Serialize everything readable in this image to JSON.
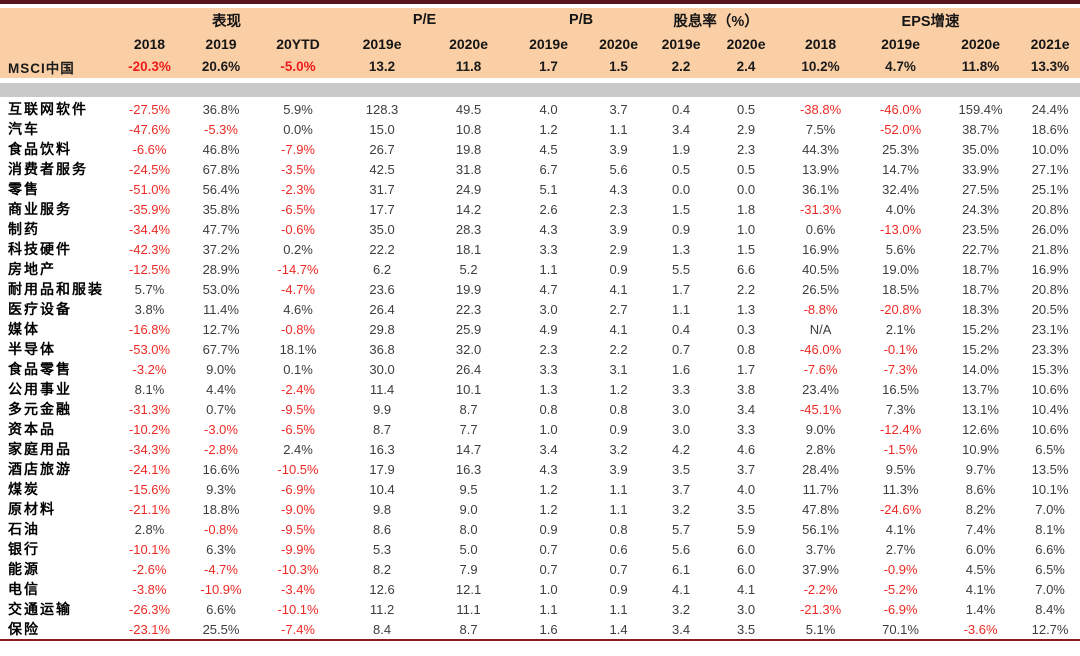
{
  "colors": {
    "top_rule": "#5a141f",
    "bottom_rule": "#8c1a23",
    "header_background": "#facfa5",
    "separator_band": "#c9c9c9",
    "negative_text": "#ee2a24",
    "normal_text": "#3d3d3d",
    "label_text": "#000000"
  },
  "chart_data": {
    "type": "table",
    "title": "",
    "column_groups": [
      {
        "label": "表现",
        "span": 3
      },
      {
        "label": "P/E",
        "span": 2
      },
      {
        "label": "P/B",
        "span": 2
      },
      {
        "label": "股息率（%）",
        "span": 2
      },
      {
        "label": "EPS增速",
        "span": 4
      }
    ],
    "columns": [
      "2018",
      "2019",
      "20YTD",
      "2019e",
      "2020e",
      "2019e",
      "2020e",
      "2019e",
      "2020e",
      "2018",
      "2019e",
      "2020e",
      "2021e"
    ],
    "summary_row": {
      "label": "MSCI中国",
      "values": [
        "-20.3%",
        "20.6%",
        "-5.0%",
        "13.2",
        "11.8",
        "1.7",
        "1.5",
        "2.2",
        "2.4",
        "10.2%",
        "4.7%",
        "11.8%",
        "13.3%"
      ]
    },
    "rows": [
      {
        "label": "互联网软件",
        "values": [
          "-27.5%",
          "36.8%",
          "5.9%",
          "128.3",
          "49.5",
          "4.0",
          "3.7",
          "0.4",
          "0.5",
          "-38.8%",
          "-46.0%",
          "159.4%",
          "24.4%"
        ]
      },
      {
        "label": "汽车",
        "values": [
          "-47.6%",
          "-5.3%",
          "0.0%",
          "15.0",
          "10.8",
          "1.2",
          "1.1",
          "3.4",
          "2.9",
          "7.5%",
          "-52.0%",
          "38.7%",
          "18.6%"
        ]
      },
      {
        "label": "食品饮料",
        "values": [
          "-6.6%",
          "46.8%",
          "-7.9%",
          "26.7",
          "19.8",
          "4.5",
          "3.9",
          "1.9",
          "2.3",
          "44.3%",
          "25.3%",
          "35.0%",
          "10.0%"
        ]
      },
      {
        "label": "消费者服务",
        "values": [
          "-24.5%",
          "67.8%",
          "-3.5%",
          "42.5",
          "31.8",
          "6.7",
          "5.6",
          "0.5",
          "0.5",
          "13.9%",
          "14.7%",
          "33.9%",
          "27.1%"
        ]
      },
      {
        "label": "零售",
        "values": [
          "-51.0%",
          "56.4%",
          "-2.3%",
          "31.7",
          "24.9",
          "5.1",
          "4.3",
          "0.0",
          "0.0",
          "36.1%",
          "32.4%",
          "27.5%",
          "25.1%"
        ]
      },
      {
        "label": "商业服务",
        "values": [
          "-35.9%",
          "35.8%",
          "-6.5%",
          "17.7",
          "14.2",
          "2.6",
          "2.3",
          "1.5",
          "1.8",
          "-31.3%",
          "4.0%",
          "24.3%",
          "20.8%"
        ]
      },
      {
        "label": "制药",
        "values": [
          "-34.4%",
          "47.7%",
          "-0.6%",
          "35.0",
          "28.3",
          "4.3",
          "3.9",
          "0.9",
          "1.0",
          "0.6%",
          "-13.0%",
          "23.5%",
          "26.0%"
        ]
      },
      {
        "label": "科技硬件",
        "values": [
          "-42.3%",
          "37.2%",
          "0.2%",
          "22.2",
          "18.1",
          "3.3",
          "2.9",
          "1.3",
          "1.5",
          "16.9%",
          "5.6%",
          "22.7%",
          "21.8%"
        ]
      },
      {
        "label": "房地产",
        "values": [
          "-12.5%",
          "28.9%",
          "-14.7%",
          "6.2",
          "5.2",
          "1.1",
          "0.9",
          "5.5",
          "6.6",
          "40.5%",
          "19.0%",
          "18.7%",
          "16.9%"
        ]
      },
      {
        "label": "耐用品和服装",
        "values": [
          "5.7%",
          "53.0%",
          "-4.7%",
          "23.6",
          "19.9",
          "4.7",
          "4.1",
          "1.7",
          "2.2",
          "26.5%",
          "18.5%",
          "18.7%",
          "20.8%"
        ]
      },
      {
        "label": "医疗设备",
        "values": [
          "3.8%",
          "11.4%",
          "4.6%",
          "26.4",
          "22.3",
          "3.0",
          "2.7",
          "1.1",
          "1.3",
          "-8.8%",
          "-20.8%",
          "18.3%",
          "20.5%"
        ]
      },
      {
        "label": "媒体",
        "values": [
          "-16.8%",
          "12.7%",
          "-0.8%",
          "29.8",
          "25.9",
          "4.9",
          "4.1",
          "0.4",
          "0.3",
          "N/A",
          "2.1%",
          "15.2%",
          "23.1%"
        ]
      },
      {
        "label": "半导体",
        "values": [
          "-53.0%",
          "67.7%",
          "18.1%",
          "36.8",
          "32.0",
          "2.3",
          "2.2",
          "0.7",
          "0.8",
          "-46.0%",
          "-0.1%",
          "15.2%",
          "23.3%"
        ]
      },
      {
        "label": "食品零售",
        "values": [
          "-3.2%",
          "9.0%",
          "0.1%",
          "30.0",
          "26.4",
          "3.3",
          "3.1",
          "1.6",
          "1.7",
          "-7.6%",
          "-7.3%",
          "14.0%",
          "15.3%"
        ]
      },
      {
        "label": "公用事业",
        "values": [
          "8.1%",
          "4.4%",
          "-2.4%",
          "11.4",
          "10.1",
          "1.3",
          "1.2",
          "3.3",
          "3.8",
          "23.4%",
          "16.5%",
          "13.7%",
          "10.6%"
        ]
      },
      {
        "label": "多元金融",
        "values": [
          "-31.3%",
          "0.7%",
          "-9.5%",
          "9.9",
          "8.7",
          "0.8",
          "0.8",
          "3.0",
          "3.4",
          "-45.1%",
          "7.3%",
          "13.1%",
          "10.4%"
        ]
      },
      {
        "label": "资本品",
        "values": [
          "-10.2%",
          "-3.0%",
          "-6.5%",
          "8.7",
          "7.7",
          "1.0",
          "0.9",
          "3.0",
          "3.3",
          "9.0%",
          "-12.4%",
          "12.6%",
          "10.6%"
        ]
      },
      {
        "label": "家庭用品",
        "values": [
          "-34.3%",
          "-2.8%",
          "2.4%",
          "16.3",
          "14.7",
          "3.4",
          "3.2",
          "4.2",
          "4.6",
          "2.8%",
          "-1.5%",
          "10.9%",
          "6.5%"
        ]
      },
      {
        "label": "酒店旅游",
        "values": [
          "-24.1%",
          "16.6%",
          "-10.5%",
          "17.9",
          "16.3",
          "4.3",
          "3.9",
          "3.5",
          "3.7",
          "28.4%",
          "9.5%",
          "9.7%",
          "13.5%"
        ]
      },
      {
        "label": "煤炭",
        "values": [
          "-15.6%",
          "9.3%",
          "-6.9%",
          "10.4",
          "9.5",
          "1.2",
          "1.1",
          "3.7",
          "4.0",
          "11.7%",
          "11.3%",
          "8.6%",
          "10.1%"
        ]
      },
      {
        "label": "原材料",
        "values": [
          "-21.1%",
          "18.8%",
          "-9.0%",
          "9.8",
          "9.0",
          "1.2",
          "1.1",
          "3.2",
          "3.5",
          "47.8%",
          "-24.6%",
          "8.2%",
          "7.0%"
        ]
      },
      {
        "label": "石油",
        "values": [
          "2.8%",
          "-0.8%",
          "-9.5%",
          "8.6",
          "8.0",
          "0.9",
          "0.8",
          "5.7",
          "5.9",
          "56.1%",
          "4.1%",
          "7.4%",
          "8.1%"
        ]
      },
      {
        "label": "银行",
        "values": [
          "-10.1%",
          "6.3%",
          "-9.9%",
          "5.3",
          "5.0",
          "0.7",
          "0.6",
          "5.6",
          "6.0",
          "3.7%",
          "2.7%",
          "6.0%",
          "6.6%"
        ]
      },
      {
        "label": "能源",
        "values": [
          "-2.6%",
          "-4.7%",
          "-10.3%",
          "8.2",
          "7.9",
          "0.7",
          "0.7",
          "6.1",
          "6.0",
          "37.9%",
          "-0.9%",
          "4.5%",
          "6.5%"
        ]
      },
      {
        "label": "电信",
        "values": [
          "-3.8%",
          "-10.9%",
          "-3.4%",
          "12.6",
          "12.1",
          "1.0",
          "0.9",
          "4.1",
          "4.1",
          "-2.2%",
          "-5.2%",
          "4.1%",
          "7.0%"
        ]
      },
      {
        "label": "交通运输",
        "values": [
          "-26.3%",
          "6.6%",
          "-10.1%",
          "11.2",
          "11.1",
          "1.1",
          "1.1",
          "3.2",
          "3.0",
          "-21.3%",
          "-6.9%",
          "1.4%",
          "8.4%"
        ]
      },
      {
        "label": "保险",
        "values": [
          "-23.1%",
          "25.5%",
          "-7.4%",
          "8.4",
          "8.7",
          "1.6",
          "1.4",
          "3.4",
          "3.5",
          "5.1%",
          "70.1%",
          "-3.6%",
          "12.7%"
        ]
      }
    ],
    "layout": {
      "legend": "none",
      "grid": "off",
      "negative_values_in_red": true,
      "header_groups_over_year_columns": true
    }
  }
}
